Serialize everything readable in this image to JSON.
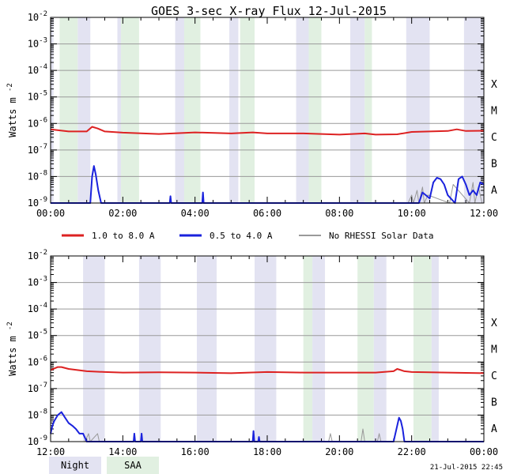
{
  "title": "GOES 3-sec X-ray Flux   12-Jul-2015",
  "ylabel_base": "Watts m",
  "ylabel_exp": "-2",
  "footer_timestamp": "21-Jul-2015 22:45",
  "colors": {
    "long": "#dd2222",
    "short": "#1a22dd",
    "no_rhessi": "#999999",
    "night": "#e3e3f2",
    "saa": "#e1f0e1",
    "grid": "#9a9a9a"
  },
  "legend": {
    "items": [
      {
        "label": "1.0 to 8.0 A",
        "color": "#dd2222",
        "width": 2
      },
      {
        "label": "0.5 to 4.0 A",
        "color": "#1a22dd",
        "width": 2
      },
      {
        "label": "No RHESSI Solar Data",
        "color": "#999999",
        "width": 1
      }
    ],
    "bands": [
      {
        "label": "Night",
        "color": "#e3e3f2"
      },
      {
        "label": "SAA",
        "color": "#e1f0e1"
      }
    ]
  },
  "chart_data": [
    {
      "type": "line",
      "title": "GOES 3-sec X-ray Flux   12-Jul-2015",
      "ylabel": "Watts m-2",
      "y_scale": "log",
      "ylim": [
        1e-09,
        0.01
      ],
      "xlim_hours": [
        0,
        12
      ],
      "x_ticks": [
        "00:00",
        "02:00",
        "04:00",
        "06:00",
        "08:00",
        "10:00",
        "12:00"
      ],
      "y_ticks": [
        "10-9",
        "10-8",
        "10-7",
        "10-6",
        "10-5",
        "10-4",
        "10-3",
        "10-2"
      ],
      "flare_classes": [
        "A",
        "B",
        "C",
        "M",
        "X"
      ],
      "night_bands_hours": [
        [
          0,
          0.08
        ],
        [
          0.75,
          1.1
        ],
        [
          1.85,
          2.35
        ],
        [
          3.45,
          3.7
        ],
        [
          4.95,
          5.2
        ],
        [
          6.8,
          7.15
        ],
        [
          8.3,
          8.7
        ],
        [
          9.85,
          10.5
        ],
        [
          11.45,
          12
        ]
      ],
      "saa_bands_hours": [
        [
          0.25,
          0.75
        ],
        [
          1.95,
          2.45
        ],
        [
          3.7,
          4.15
        ],
        [
          5.25,
          5.65
        ],
        [
          7.15,
          7.5
        ],
        [
          8.7,
          8.9
        ]
      ],
      "series": [
        {
          "name": "1.0 to 8.0 A",
          "x": [
            0,
            0.5,
            1.0,
            1.15,
            1.3,
            1.5,
            2.0,
            3.0,
            4.0,
            5.0,
            5.6,
            6.0,
            7.0,
            8.0,
            8.7,
            9.0,
            9.6,
            10.0,
            11.0,
            11.25,
            11.5,
            12.0
          ],
          "y": [
            6e-07,
            5e-07,
            5e-07,
            7.5e-07,
            6.5e-07,
            5e-07,
            4.5e-07,
            4e-07,
            4.6e-07,
            4.2e-07,
            4.6e-07,
            4.2e-07,
            4.2e-07,
            3.8e-07,
            4.2e-07,
            3.8e-07,
            3.9e-07,
            4.8e-07,
            5.2e-07,
            6e-07,
            5.2e-07,
            5.3e-07
          ]
        },
        {
          "name": "0.5 to 4.0 A",
          "x": [
            0,
            1.1,
            1.15,
            1.2,
            1.25,
            1.32,
            1.4,
            3.3,
            3.32,
            3.34,
            4.2,
            4.22,
            4.24,
            10.2,
            10.3,
            10.5,
            10.6,
            10.7,
            10.8,
            10.9,
            11.0,
            11.2,
            11.3,
            11.4,
            11.5,
            11.6,
            11.7,
            11.8,
            11.9,
            12.0
          ],
          "y": [
            1e-09,
            1e-09,
            1e-08,
            2.5e-08,
            1.2e-08,
            3e-09,
            1e-09,
            1e-09,
            1.8e-09,
            1e-09,
            1e-09,
            2.5e-09,
            1e-09,
            1e-09,
            2.5e-09,
            1.5e-09,
            6e-09,
            9e-09,
            8e-09,
            5e-09,
            2e-09,
            1e-09,
            8e-09,
            1e-08,
            5e-09,
            2e-09,
            3e-09,
            2e-09,
            6e-09,
            5e-09
          ]
        },
        {
          "name": "No RHESSI Solar Data",
          "x": [
            9.9,
            10.0,
            10.05,
            10.15,
            10.2,
            10.3,
            10.35,
            10.45,
            11.05,
            11.15,
            11.6,
            11.7,
            11.75,
            11.85,
            11.95
          ],
          "y": [
            1e-09,
            2e-09,
            1e-09,
            3e-09,
            1e-09,
            4e-09,
            1e-09,
            2e-09,
            1e-09,
            5e-09,
            1e-09,
            6e-09,
            1e-09,
            4e-09,
            1e-09
          ]
        }
      ]
    },
    {
      "type": "line",
      "ylabel": "Watts m-2",
      "y_scale": "log",
      "ylim": [
        1e-09,
        0.01
      ],
      "xlim_hours": [
        12,
        24
      ],
      "x_ticks": [
        "12:00",
        "14:00",
        "16:00",
        "18:00",
        "20:00",
        "22:00",
        "00:00"
      ],
      "y_ticks": [
        "10-9",
        "10-8",
        "10-7",
        "10-6",
        "10-5",
        "10-4",
        "10-3",
        "10-2"
      ],
      "flare_classes": [
        "A",
        "B",
        "C",
        "M",
        "X"
      ],
      "night_bands_hours": [
        [
          12.9,
          13.5
        ],
        [
          14.45,
          15.05
        ],
        [
          16.05,
          16.6
        ],
        [
          17.65,
          18.25
        ],
        [
          19.25,
          19.6
        ],
        [
          20.95,
          21.3
        ],
        [
          22.55,
          22.75
        ]
      ],
      "saa_bands_hours": [
        [
          19.0,
          19.25
        ],
        [
          20.5,
          20.95
        ],
        [
          22.05,
          22.55
        ]
      ],
      "series": [
        {
          "name": "1.0 to 8.0 A",
          "x": [
            12.0,
            12.2,
            12.3,
            12.5,
            13.0,
            13.5,
            14.0,
            15.0,
            16.0,
            17.0,
            18.0,
            19.0,
            20.0,
            21.0,
            21.5,
            21.6,
            21.8,
            22.0,
            23.0,
            24.0
          ],
          "y": [
            5e-07,
            6.5e-07,
            6.5e-07,
            5.5e-07,
            4.5e-07,
            4.2e-07,
            4e-07,
            4.1e-07,
            4e-07,
            3.8e-07,
            4.2e-07,
            4e-07,
            4e-07,
            4e-07,
            4.5e-07,
            5.5e-07,
            4.5e-07,
            4.2e-07,
            4e-07,
            3.8e-07
          ]
        },
        {
          "name": "0.5 to 4.0 A",
          "x": [
            12.0,
            12.05,
            12.1,
            12.2,
            12.3,
            12.4,
            12.5,
            12.6,
            12.7,
            12.8,
            12.9,
            13.0,
            14.3,
            14.32,
            14.34,
            14.5,
            14.52,
            14.54,
            17.6,
            17.62,
            17.64,
            17.75,
            17.77,
            17.79,
            21.5,
            21.6,
            21.65,
            21.7,
            21.75,
            21.8,
            24.0
          ],
          "y": [
            2e-09,
            4e-09,
            6e-09,
            1e-08,
            1.3e-08,
            8e-09,
            5e-09,
            4e-09,
            3e-09,
            2e-09,
            2e-09,
            1e-09,
            1e-09,
            2e-09,
            1e-09,
            1e-09,
            2e-09,
            1e-09,
            1e-09,
            2.5e-09,
            1e-09,
            1e-09,
            1.5e-09,
            1e-09,
            1e-09,
            4e-09,
            8e-09,
            6e-09,
            3e-09,
            1e-09,
            1e-09
          ]
        },
        {
          "name": "No RHESSI Solar Data",
          "x": [
            12.95,
            13.05,
            13.1,
            13.3,
            13.35,
            19.7,
            19.75,
            19.8,
            20.6,
            20.65,
            20.7,
            21.05,
            21.1,
            21.15
          ],
          "y": [
            1e-09,
            2e-09,
            1e-09,
            2e-09,
            1e-09,
            1e-09,
            2e-09,
            1e-09,
            1e-09,
            3e-09,
            1e-09,
            1e-09,
            2e-09,
            1e-09
          ]
        }
      ]
    }
  ]
}
